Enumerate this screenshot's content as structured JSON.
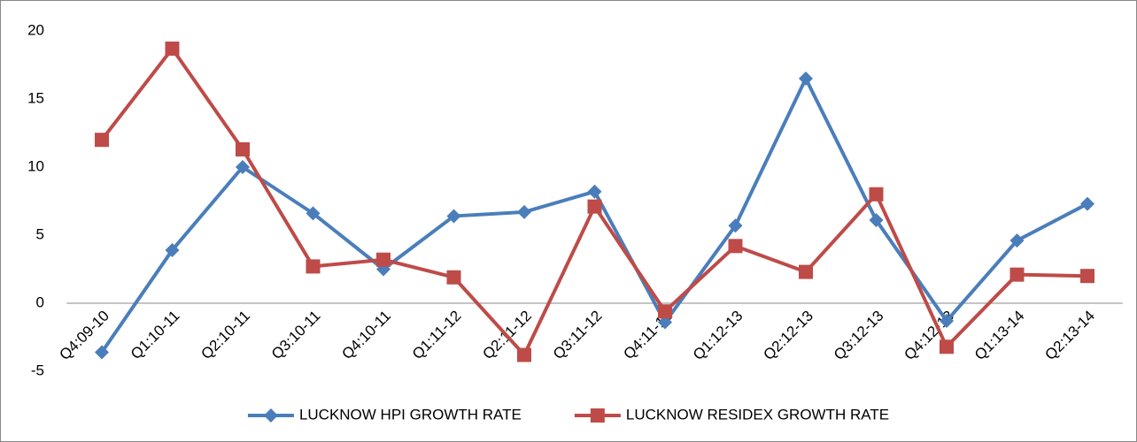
{
  "chart_data": {
    "type": "line",
    "categories": [
      "Q4:09-10",
      "Q1:10-11",
      "Q2:10-11",
      "Q3:10-11",
      "Q4:10-11",
      "Q1:11-12",
      "Q2:11-12",
      "Q3:11-12",
      "Q4:11-12",
      "Q1:12-13",
      "Q2:12-13",
      "Q3:12-13",
      "Q4:12-13",
      "Q1:13-14",
      "Q2:13-14"
    ],
    "series": [
      {
        "name": "LUCKNOW HPI GROWTH RATE",
        "color": "#4a7ebb",
        "marker": "diamond",
        "values": [
          -3.6,
          3.9,
          10.0,
          6.6,
          2.5,
          6.4,
          6.7,
          8.2,
          -1.4,
          5.7,
          16.5,
          6.1,
          -1.3,
          4.6,
          7.3
        ]
      },
      {
        "name": "LUCKNOW RESIDEX GROWTH RATE",
        "color": "#be4b48",
        "marker": "square",
        "values": [
          12.0,
          18.7,
          11.3,
          2.7,
          3.2,
          1.9,
          -3.8,
          7.1,
          -0.6,
          4.2,
          2.3,
          8.0,
          -3.2,
          2.1,
          2.0
        ]
      }
    ],
    "ylim": [
      -5,
      20
    ],
    "yticks": [
      -5,
      0,
      5,
      10,
      15,
      20
    ],
    "grid": false,
    "legend": "bottom"
  }
}
